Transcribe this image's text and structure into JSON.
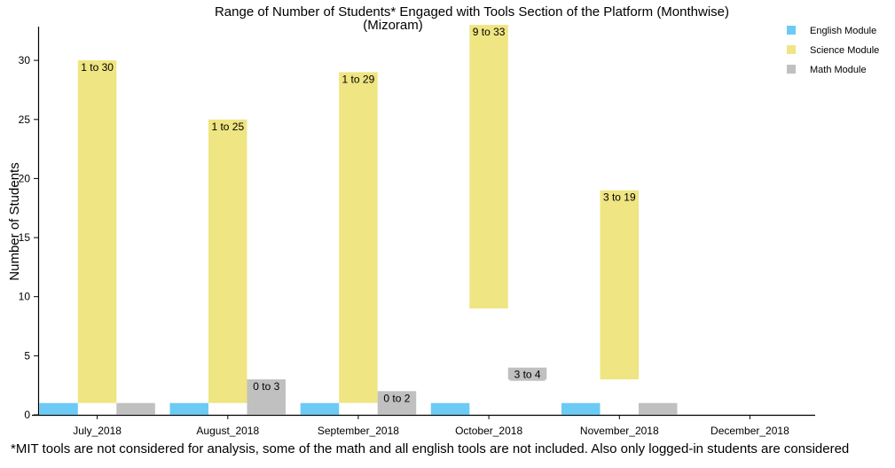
{
  "chart_data": {
    "type": "bar",
    "title": "Range of Number of Students* Engaged with Tools Section of the Platform (Monthwise)",
    "subtitle": "(Mizoram)",
    "xlabel": "",
    "ylabel": "Number of Students",
    "ylim": [
      0,
      33
    ],
    "yticks": [
      "0",
      "5",
      "10",
      "15",
      "20",
      "25",
      "30"
    ],
    "grid": false,
    "legend_position": "top-right",
    "categories": [
      "July_2018",
      "August_2018",
      "September_2018",
      "October_2018",
      "November_2018",
      "December_2018"
    ],
    "series": [
      {
        "name": "English Module",
        "color": "#6ccaf5",
        "ranges": [
          [
            0,
            1
          ],
          [
            0,
            1
          ],
          [
            0,
            1
          ],
          [
            0,
            1
          ],
          [
            0,
            1
          ],
          null
        ],
        "labels": [
          "",
          "",
          "",
          "",
          "",
          ""
        ]
      },
      {
        "name": "Science Module",
        "color": "#efe582",
        "ranges": [
          [
            1,
            30
          ],
          [
            1,
            25
          ],
          [
            1,
            29
          ],
          [
            9,
            33
          ],
          [
            3,
            19
          ],
          null
        ],
        "labels": [
          "1 to 30",
          "1 to 25",
          "1 to 29",
          "9 to 33",
          "3 to 19",
          ""
        ]
      },
      {
        "name": "Math Module",
        "color": "#c0c0c0",
        "ranges": [
          [
            0,
            1
          ],
          [
            0,
            3
          ],
          [
            0,
            2
          ],
          [
            3,
            4
          ],
          [
            0,
            1
          ],
          null
        ],
        "labels": [
          "",
          "0 to 3",
          "0 to 2",
          "3 to 4",
          "",
          ""
        ]
      }
    ]
  },
  "footnote": "*MIT tools are not considered for analysis, some of the math and all english tools are not included. Also only logged-in students are considered"
}
